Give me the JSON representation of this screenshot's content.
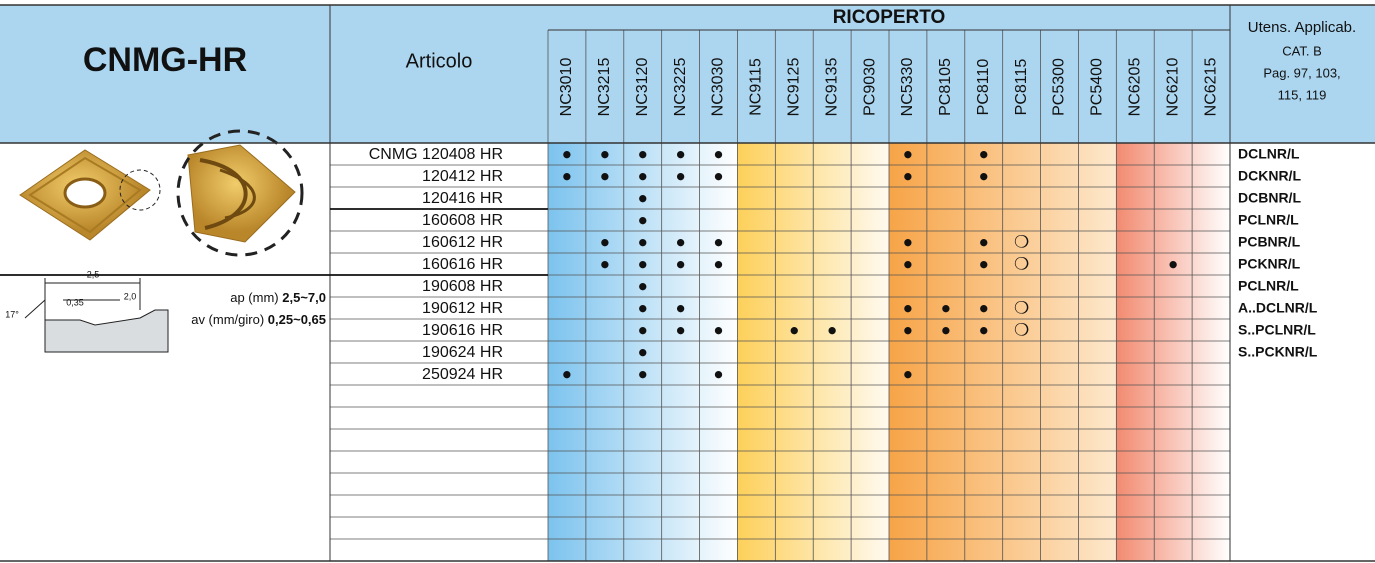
{
  "header": {
    "title": "CNMG-HR",
    "article_label": "Articolo",
    "coating_label": "RICOPERTO",
    "grades": [
      "NC3010",
      "NC3215",
      "NC3120",
      "NC3225",
      "NC3030",
      "NC9115",
      "NC9125",
      "NC9135",
      "PC9030",
      "NC5330",
      "PC8105",
      "PC8110",
      "PC8115",
      "PC5300",
      "PC5400",
      "NC6205",
      "NC6210",
      "NC6215"
    ],
    "tools_label": "Utens. Applicab.",
    "tools_ref": [
      "CAT. B",
      "Pag. 97, 103,",
      "115, 119"
    ]
  },
  "geometry": {
    "ap_label": "ap (mm)",
    "ap_value": "2,5~7,0",
    "av_label": "av (mm/giro)",
    "av_value": "0,25~0,65",
    "dims": [
      "2,5",
      "0,35",
      "2,0",
      "17°"
    ]
  },
  "table": {
    "rows": [
      {
        "article": "CNMG 120408 HR",
        "cells": [
          "●",
          "●",
          "●",
          "●",
          "●",
          null,
          null,
          null,
          null,
          "●",
          null,
          "●",
          null,
          null,
          null,
          null,
          null,
          null
        ]
      },
      {
        "article": "120412 HR",
        "cells": [
          "●",
          "●",
          "●",
          "●",
          "●",
          null,
          null,
          null,
          null,
          "●",
          null,
          "●",
          null,
          null,
          null,
          null,
          null,
          null
        ]
      },
      {
        "article": "120416 HR",
        "cells": [
          null,
          null,
          "●",
          null,
          null,
          null,
          null,
          null,
          null,
          null,
          null,
          null,
          null,
          null,
          null,
          null,
          null,
          null
        ]
      },
      {
        "article": "160608 HR",
        "cells": [
          null,
          null,
          "●",
          null,
          null,
          null,
          null,
          null,
          null,
          null,
          null,
          null,
          null,
          null,
          null,
          null,
          null,
          null
        ]
      },
      {
        "article": "160612 HR",
        "cells": [
          null,
          "●",
          "●",
          "●",
          "●",
          null,
          null,
          null,
          null,
          "●",
          null,
          "●",
          "❍",
          null,
          null,
          null,
          null,
          null
        ]
      },
      {
        "article": "160616 HR",
        "cells": [
          null,
          "●",
          "●",
          "●",
          "●",
          null,
          null,
          null,
          null,
          "●",
          null,
          "●",
          "❍",
          null,
          null,
          null,
          "●",
          null
        ]
      },
      {
        "article": "190608 HR",
        "cells": [
          null,
          null,
          "●",
          null,
          null,
          null,
          null,
          null,
          null,
          null,
          null,
          null,
          null,
          null,
          null,
          null,
          null,
          null
        ]
      },
      {
        "article": "190612 HR",
        "cells": [
          null,
          null,
          "●",
          "●",
          null,
          null,
          null,
          null,
          null,
          "●",
          "●",
          "●",
          "❍",
          null,
          null,
          null,
          null,
          null
        ]
      },
      {
        "article": "190616 HR",
        "cells": [
          null,
          null,
          "●",
          "●",
          "●",
          null,
          "●",
          "●",
          null,
          "●",
          "●",
          "●",
          "❍",
          null,
          null,
          null,
          null,
          null
        ]
      },
      {
        "article": "190624 HR",
        "cells": [
          null,
          null,
          "●",
          null,
          null,
          null,
          null,
          null,
          null,
          null,
          null,
          null,
          null,
          null,
          null,
          null,
          null,
          null
        ]
      },
      {
        "article": "250924 HR",
        "cells": [
          "●",
          null,
          "●",
          null,
          "●",
          null,
          null,
          null,
          null,
          "●",
          null,
          null,
          null,
          null,
          null,
          null,
          null,
          null
        ]
      }
    ]
  },
  "tools": [
    "DCLNR/L",
    "DCKNR/L",
    "DCBNR/L",
    "PCLNR/L",
    "PCBNR/L",
    "PCKNR/L",
    "PCLNR/L",
    "A..DCLNR/L",
    "S..PCLNR/L",
    "S..PCKNR/L"
  ]
}
